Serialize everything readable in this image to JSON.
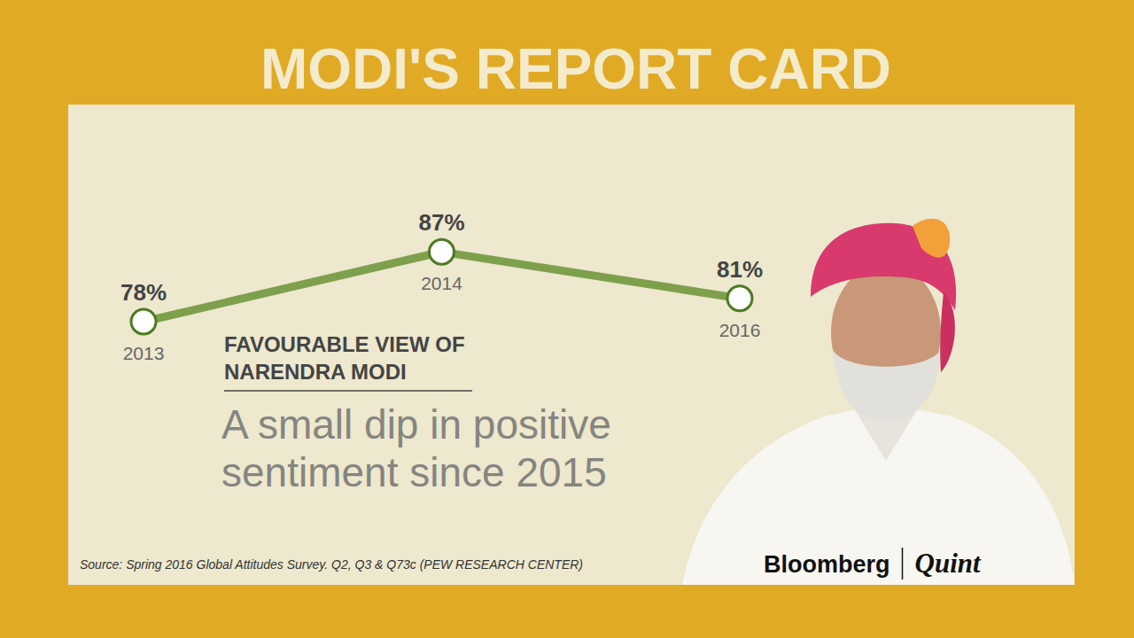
{
  "header": {
    "title": "MODI'S REPORT CARD"
  },
  "chart_data": {
    "type": "line",
    "title": "FAVOURABLE VIEW OF NARENDRA MODI",
    "subtitle": "A small dip in positive sentiment since 2015",
    "source": "Source: Spring 2016 Global Attitudes Survey. Q2, Q3 & Q73c (PEW RESEARCH CENTER)",
    "categories": [
      "2013",
      "2014",
      "2016"
    ],
    "values": [
      78,
      87,
      81
    ],
    "value_labels": [
      "78%",
      "87%",
      "81%"
    ],
    "data_labels": true,
    "color": "#7ea04c",
    "marker": "circle",
    "line_style": "solid",
    "ylim": [
      70,
      90
    ],
    "yticks": [],
    "tick_labels": "x",
    "grid": false
  },
  "credits": [
    "Bloomberg",
    "Quint"
  ]
}
